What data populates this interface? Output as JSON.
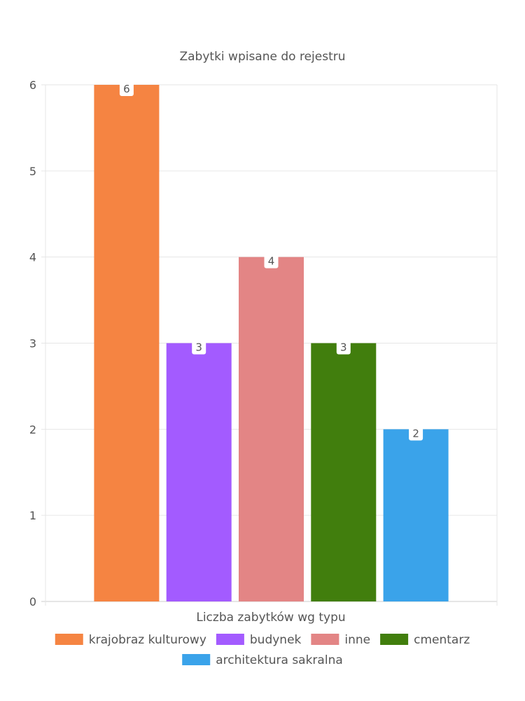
{
  "chart_data": {
    "type": "bar",
    "title": "Zabytki wpisane do rejestru",
    "xlabel": "Liczba zabytków wg typu",
    "ylabel": "",
    "ylim": [
      0,
      6
    ],
    "yticks": [
      0,
      1,
      2,
      3,
      4,
      5,
      6
    ],
    "grid": true,
    "legend_position": "bottom",
    "series": [
      {
        "name": "krajobraz kulturowy",
        "value": 6,
        "color": "#F58442"
      },
      {
        "name": "budynek",
        "value": 3,
        "color": "#A35BFF"
      },
      {
        "name": "inne",
        "value": 4,
        "color": "#E38585"
      },
      {
        "name": "cmentarz",
        "value": 3,
        "color": "#417E0D"
      },
      {
        "name": "architektura sakralna",
        "value": 2,
        "color": "#3AA3EA"
      }
    ]
  }
}
